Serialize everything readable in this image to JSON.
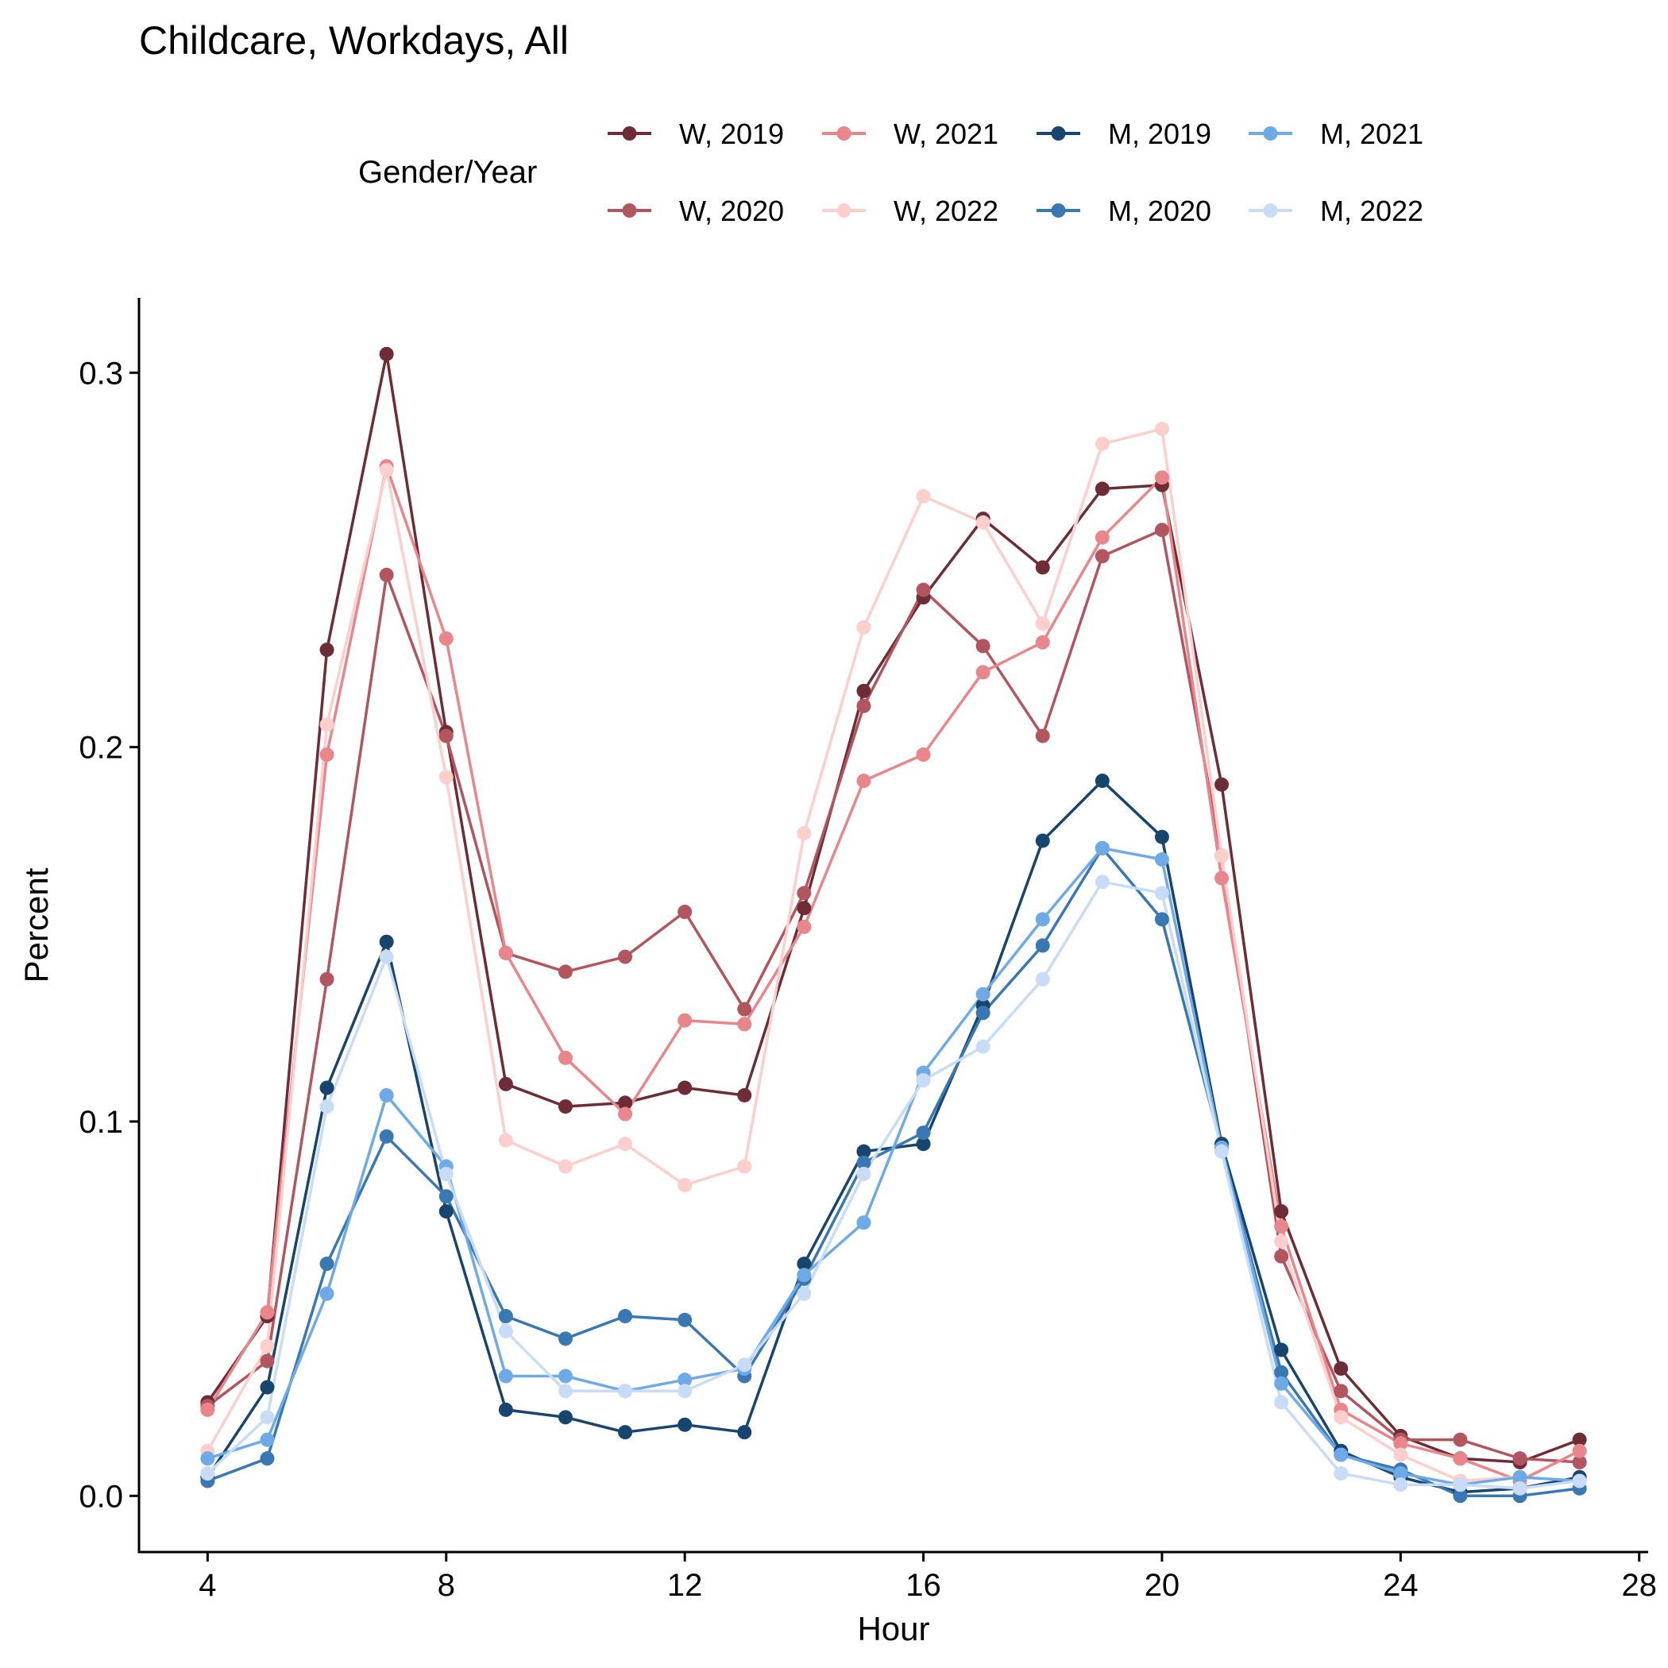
{
  "chart_data": {
    "type": "line",
    "title": "Childcare, Workdays, All",
    "xlabel": "Hour",
    "ylabel": "Percent",
    "xlim": [
      2.85,
      28.15
    ],
    "ylim": [
      -0.015,
      0.32
    ],
    "x_ticks": [
      4,
      8,
      12,
      16,
      20,
      24,
      28
    ],
    "x_tick_labels": [
      "4",
      "8",
      "12",
      "16",
      "20",
      "24",
      "28"
    ],
    "y_ticks": [
      0.0,
      0.1,
      0.2,
      0.3
    ],
    "y_tick_labels": [
      "0.0",
      "0.1",
      "0.2",
      "0.3"
    ],
    "grid": false,
    "legend": {
      "title": "Gender/Year",
      "position": "top"
    },
    "x": [
      4,
      5,
      6,
      7,
      8,
      9,
      10,
      11,
      12,
      13,
      14,
      15,
      16,
      17,
      18,
      19,
      20,
      21,
      22,
      23,
      24,
      25,
      26,
      27
    ],
    "series": [
      {
        "name": "W, 2019",
        "color": "#6e2c36",
        "values": [
          0.025,
          0.048,
          0.226,
          0.305,
          0.204,
          0.11,
          0.104,
          0.105,
          0.109,
          0.107,
          0.157,
          0.215,
          0.24,
          0.261,
          0.248,
          0.269,
          0.27,
          0.19,
          0.076,
          0.034,
          0.016,
          0.01,
          0.009,
          0.015
        ]
      },
      {
        "name": "W, 2020",
        "color": "#b2555f",
        "values": [
          0.024,
          0.036,
          0.138,
          0.246,
          0.203,
          0.145,
          0.14,
          0.144,
          0.156,
          0.13,
          0.161,
          0.211,
          0.242,
          0.227,
          0.203,
          0.251,
          0.258,
          0.171,
          0.064,
          0.028,
          0.015,
          0.015,
          0.01,
          0.009
        ]
      },
      {
        "name": "W, 2021",
        "color": "#e8868b",
        "values": [
          0.023,
          0.049,
          0.198,
          0.275,
          0.229,
          0.145,
          0.117,
          0.102,
          0.127,
          0.126,
          0.152,
          0.191,
          0.198,
          0.22,
          0.228,
          0.256,
          0.272,
          0.165,
          0.072,
          0.023,
          0.014,
          0.01,
          0.004,
          0.012
        ]
      },
      {
        "name": "W, 2022",
        "color": "#fccfcd",
        "values": [
          0.012,
          0.04,
          0.206,
          0.274,
          0.192,
          0.095,
          0.088,
          0.094,
          0.083,
          0.088,
          0.177,
          0.232,
          0.267,
          0.26,
          0.233,
          0.281,
          0.285,
          0.171,
          0.068,
          0.021,
          0.011,
          0.004,
          0.005,
          0.004
        ]
      },
      {
        "name": "M, 2019",
        "color": "#17456e",
        "values": [
          0.005,
          0.029,
          0.109,
          0.148,
          0.076,
          0.023,
          0.021,
          0.017,
          0.019,
          0.017,
          0.062,
          0.092,
          0.094,
          0.131,
          0.175,
          0.191,
          0.176,
          0.094,
          0.039,
          0.012,
          0.005,
          0.001,
          0.002,
          0.005
        ]
      },
      {
        "name": "M, 2020",
        "color": "#3a78b4",
        "values": [
          0.004,
          0.01,
          0.062,
          0.096,
          0.08,
          0.048,
          0.042,
          0.048,
          0.047,
          0.032,
          0.058,
          0.089,
          0.097,
          0.129,
          0.147,
          0.173,
          0.154,
          0.093,
          0.033,
          0.011,
          0.007,
          0.0,
          0.0,
          0.002
        ]
      },
      {
        "name": "M, 2021",
        "color": "#6faae8",
        "values": [
          0.01,
          0.015,
          0.054,
          0.107,
          0.088,
          0.032,
          0.032,
          0.028,
          0.031,
          0.034,
          0.059,
          0.073,
          0.113,
          0.134,
          0.154,
          0.173,
          0.17,
          0.093,
          0.03,
          0.011,
          0.006,
          0.003,
          0.005,
          0.004
        ]
      },
      {
        "name": "M, 2022",
        "color": "#c8dcf7",
        "values": [
          0.006,
          0.021,
          0.104,
          0.144,
          0.086,
          0.044,
          0.028,
          0.028,
          0.028,
          0.035,
          0.054,
          0.086,
          0.111,
          0.12,
          0.138,
          0.164,
          0.161,
          0.092,
          0.025,
          0.006,
          0.003,
          0.003,
          0.002,
          0.004
        ]
      }
    ]
  }
}
